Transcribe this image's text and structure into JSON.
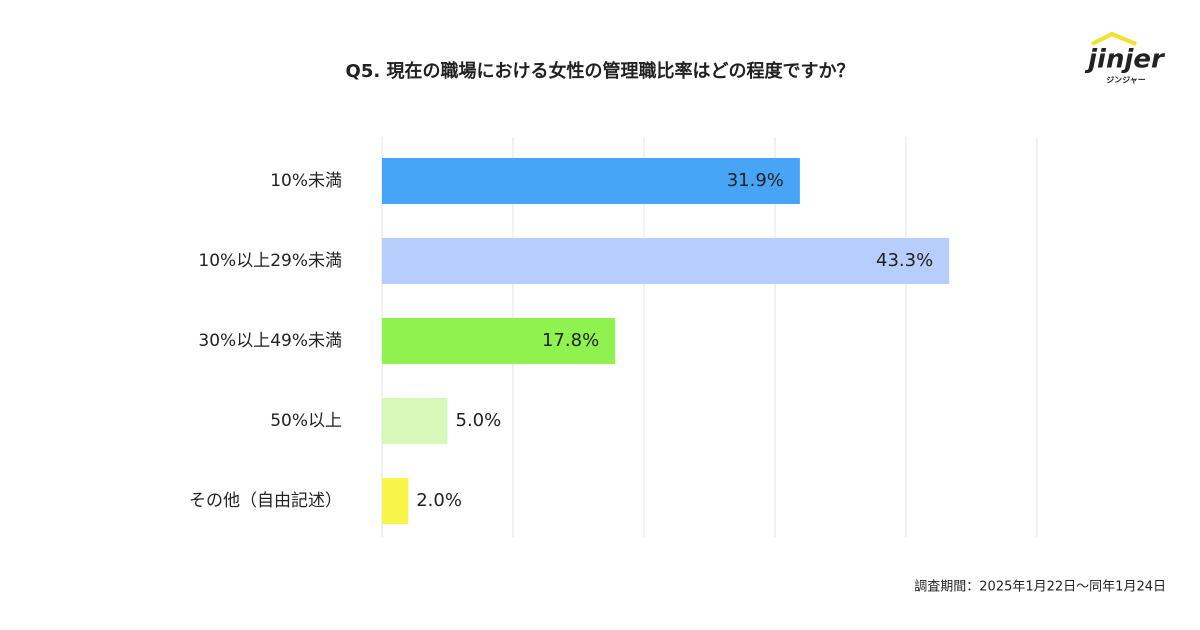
{
  "chart_data": {
    "type": "barh",
    "title": "Q5. 現在の職場における女性の管理職比率はどの程度ですか？",
    "categories": [
      "10%未満",
      "10%以上29%未満",
      "30%以上49%未満",
      "50%以上",
      "その他（自由記述）"
    ],
    "values": [
      31.9,
      43.3,
      17.8,
      5.0,
      2.0
    ],
    "value_labels": [
      "31.9%",
      "43.3%",
      "17.8%",
      "5.0%",
      "2.0%"
    ],
    "colors": [
      "#48a4f6",
      "#b7cdfc",
      "#8ff24e",
      "#d6f9b9",
      "#f9f448"
    ],
    "xlim": [
      0,
      50
    ],
    "xticks": [
      0,
      10,
      20,
      30,
      40,
      50
    ],
    "grid": true,
    "note": "調査期間：2025年1月22日～同年1月24日"
  },
  "logo": {
    "name": "jinjer",
    "subtitle": "ジンジャー"
  }
}
